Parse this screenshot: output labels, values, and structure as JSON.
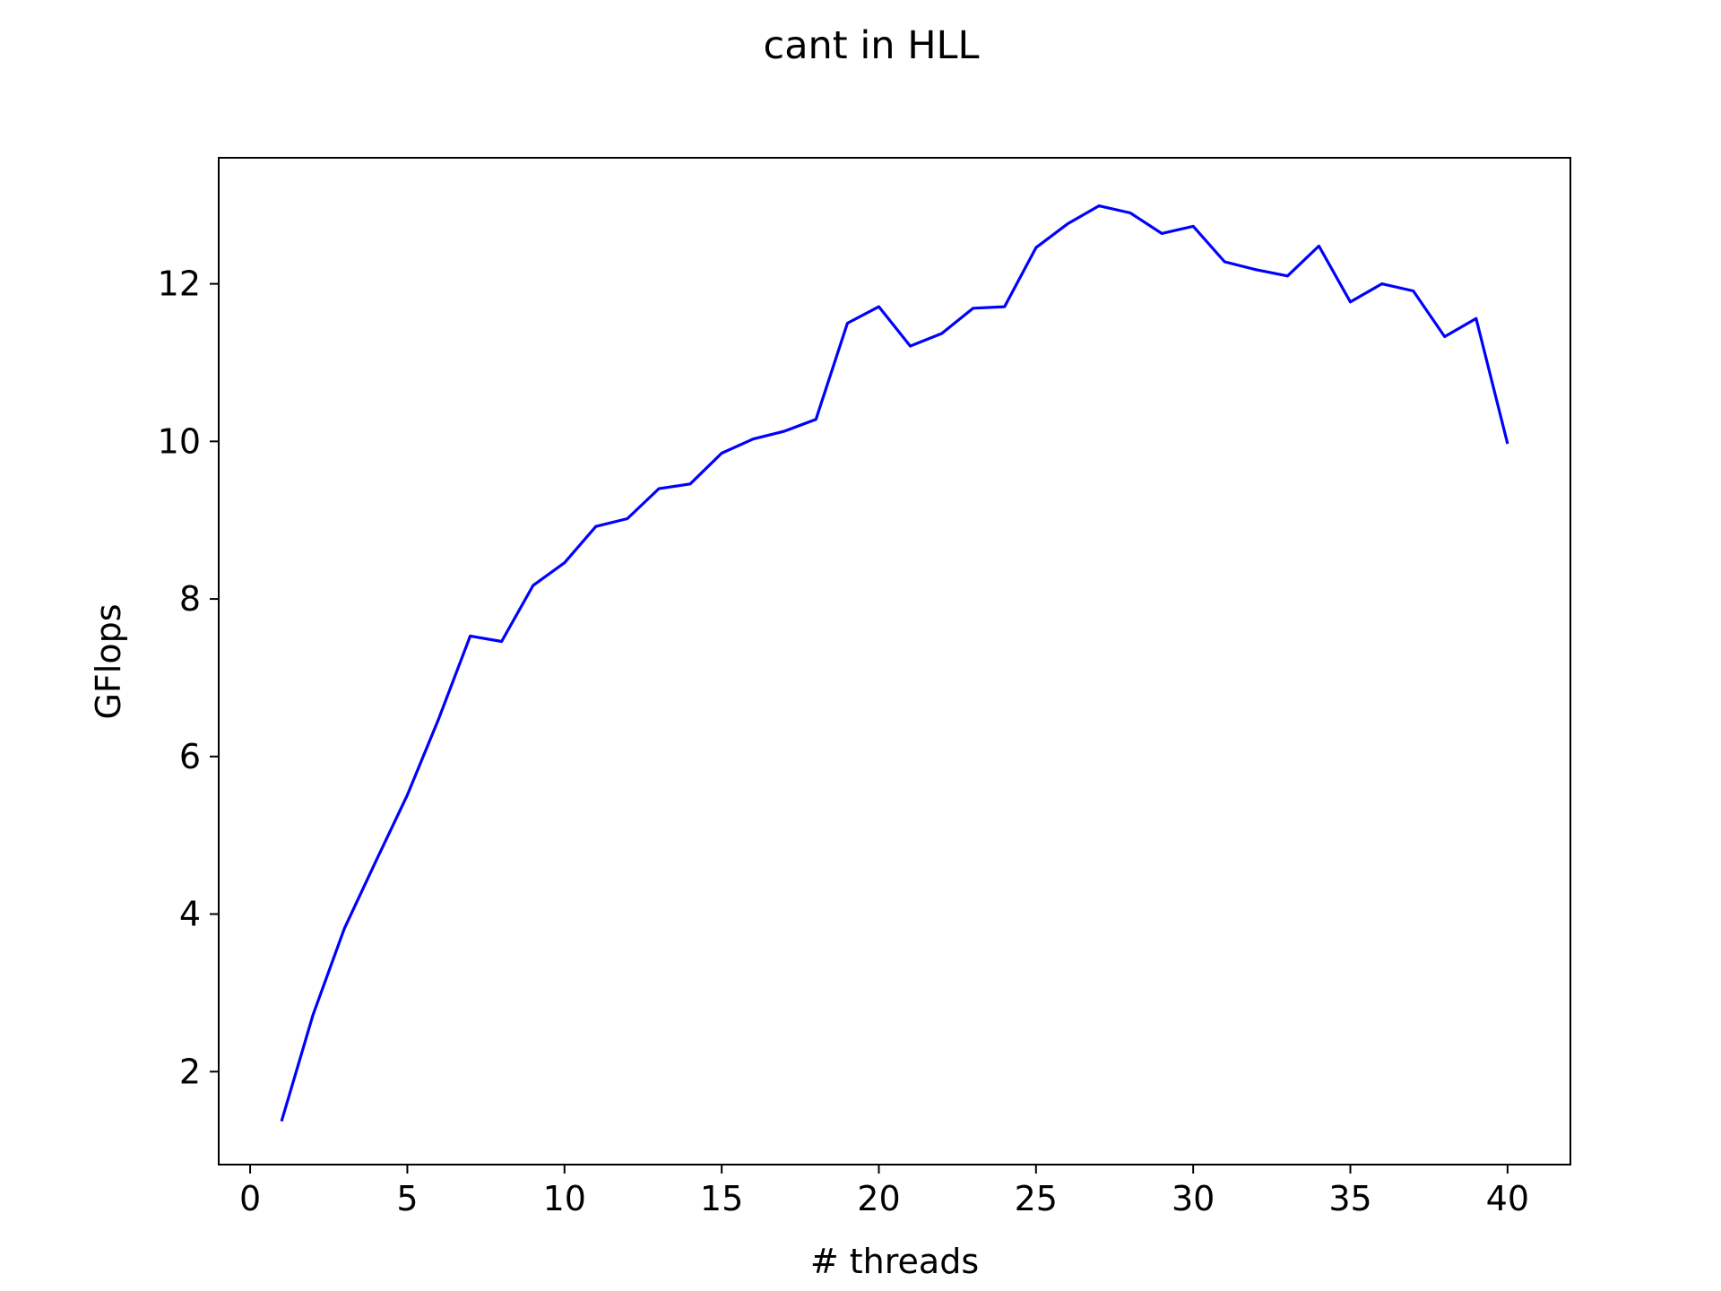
{
  "chart_data": {
    "type": "line",
    "title": "cant in HLL",
    "xlabel": "# threads",
    "ylabel": "GFlops",
    "xlim": [
      -1,
      42
    ],
    "ylim": [
      0.82,
      13.6
    ],
    "xticks": [
      0,
      5,
      10,
      15,
      20,
      25,
      30,
      35,
      40
    ],
    "yticks": [
      2,
      4,
      6,
      8,
      10,
      12
    ],
    "grid": false,
    "series": [
      {
        "color": "#0000ff",
        "x": [
          1,
          2,
          3,
          4,
          5,
          6,
          7,
          8,
          9,
          10,
          11,
          12,
          13,
          14,
          15,
          16,
          17,
          18,
          19,
          20,
          21,
          22,
          23,
          24,
          25,
          26,
          27,
          28,
          29,
          30,
          31,
          32,
          33,
          34,
          35,
          36,
          37,
          38,
          39,
          40
        ],
        "values": [
          1.37,
          2.72,
          3.82,
          4.67,
          5.51,
          6.48,
          7.53,
          7.46,
          8.17,
          8.46,
          8.92,
          9.02,
          9.4,
          9.46,
          9.85,
          10.03,
          10.13,
          10.28,
          11.5,
          11.71,
          11.21,
          11.37,
          11.69,
          11.71,
          12.46,
          12.76,
          12.99,
          12.9,
          12.64,
          12.73,
          12.28,
          12.18,
          12.1,
          12.48,
          11.77,
          12.0,
          11.91,
          11.33,
          11.56,
          9.97
        ]
      }
    ]
  }
}
